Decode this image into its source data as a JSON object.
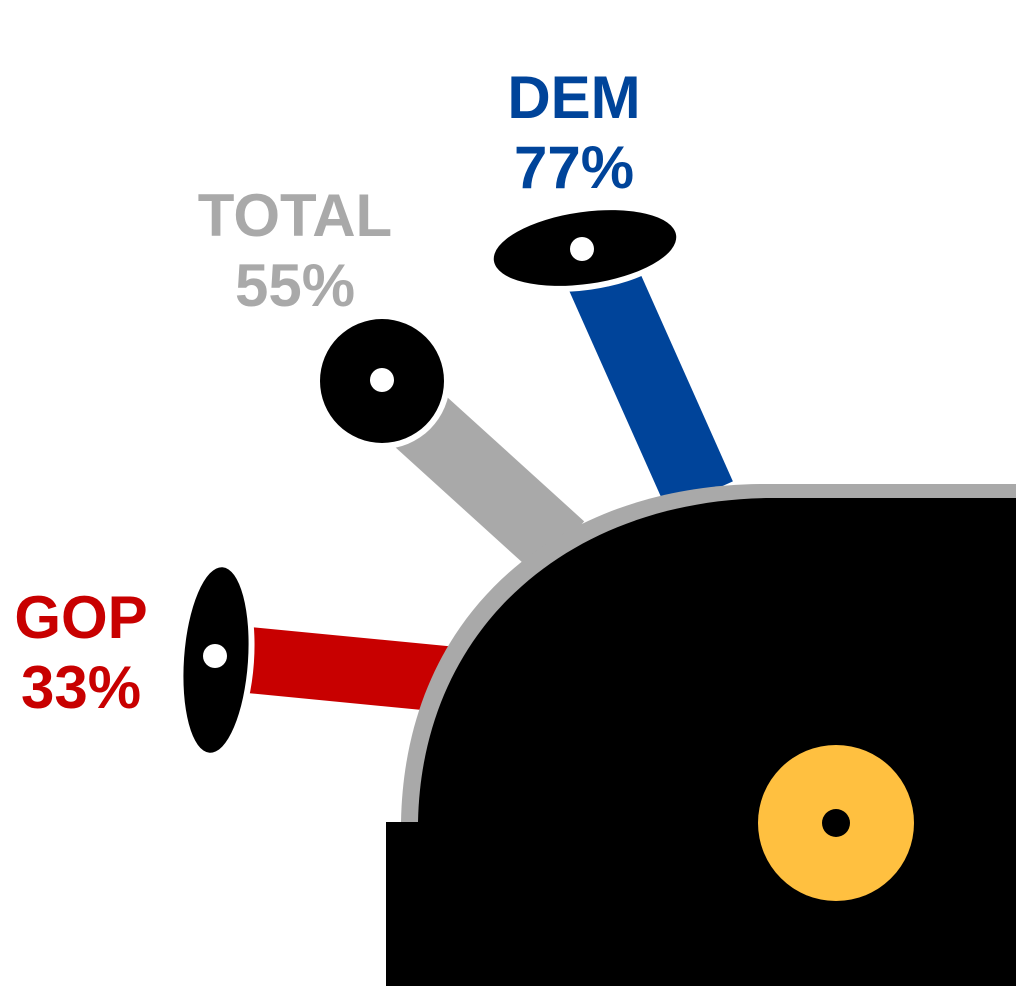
{
  "chart_data": {
    "type": "gauge",
    "series": [
      {
        "name": "DEM",
        "value": 77,
        "value_label": "77%",
        "color": "#00449a"
      },
      {
        "name": "TOTAL",
        "value": 55,
        "value_label": "55%",
        "color": "#a9a9a9"
      },
      {
        "name": "GOP",
        "value": 33,
        "value_label": "33%",
        "color": "#c80000"
      }
    ]
  },
  "colors": {
    "body": "#000000",
    "rim": "#a9a9a9",
    "hub": "#ffc040",
    "eye": "#ffffff"
  }
}
